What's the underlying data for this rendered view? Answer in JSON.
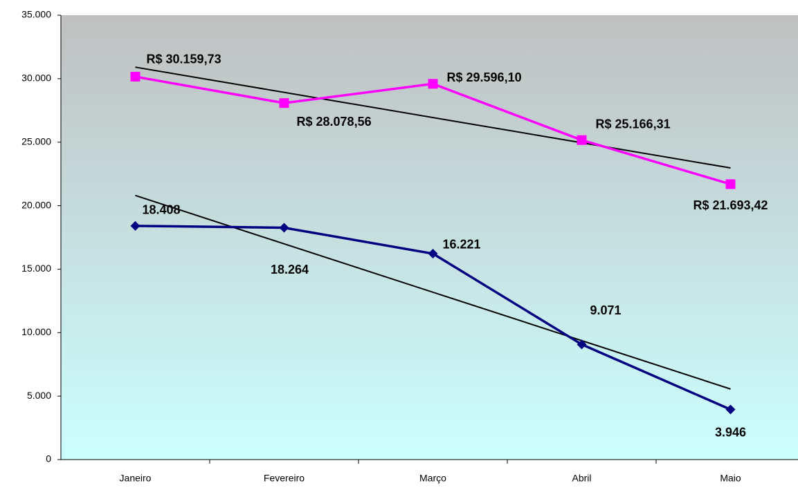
{
  "chart_data": {
    "type": "line",
    "categories": [
      "Janeiro",
      "Fevereiro",
      "Março",
      "Abril",
      "Maio"
    ],
    "series": [
      {
        "color": "#ff00ff",
        "marker": "square",
        "trendline": true,
        "values": [
          30159.73,
          28078.56,
          29596.1,
          25166.31,
          21693.42
        ],
        "value_labels": [
          "R$ 30.159,73",
          "R$ 28.078,56",
          "R$ 29.596,10",
          "R$ 25.166,31",
          "R$ 21.693,42"
        ]
      },
      {
        "color": "#000080",
        "marker": "diamond",
        "trendline": true,
        "values": [
          18408,
          18264,
          16221,
          9071,
          3946
        ],
        "value_labels": [
          "18.408",
          "18.264",
          "16.221",
          "9.071",
          "3.946"
        ]
      }
    ],
    "ylim": [
      0,
      35000
    ],
    "yticks": [
      0,
      {
        "value": 5000,
        "label": "5.000"
      },
      {
        "value": 10000,
        "label": "10.000"
      },
      {
        "value": 15000,
        "label": "15.000"
      },
      {
        "value": 20000,
        "label": "20.000"
      },
      {
        "value": 25000,
        "label": "25.000"
      },
      {
        "value": 30000,
        "label": "30.000"
      },
      {
        "value": 35000,
        "label": "35.000"
      }
    ],
    "grid": false
  }
}
